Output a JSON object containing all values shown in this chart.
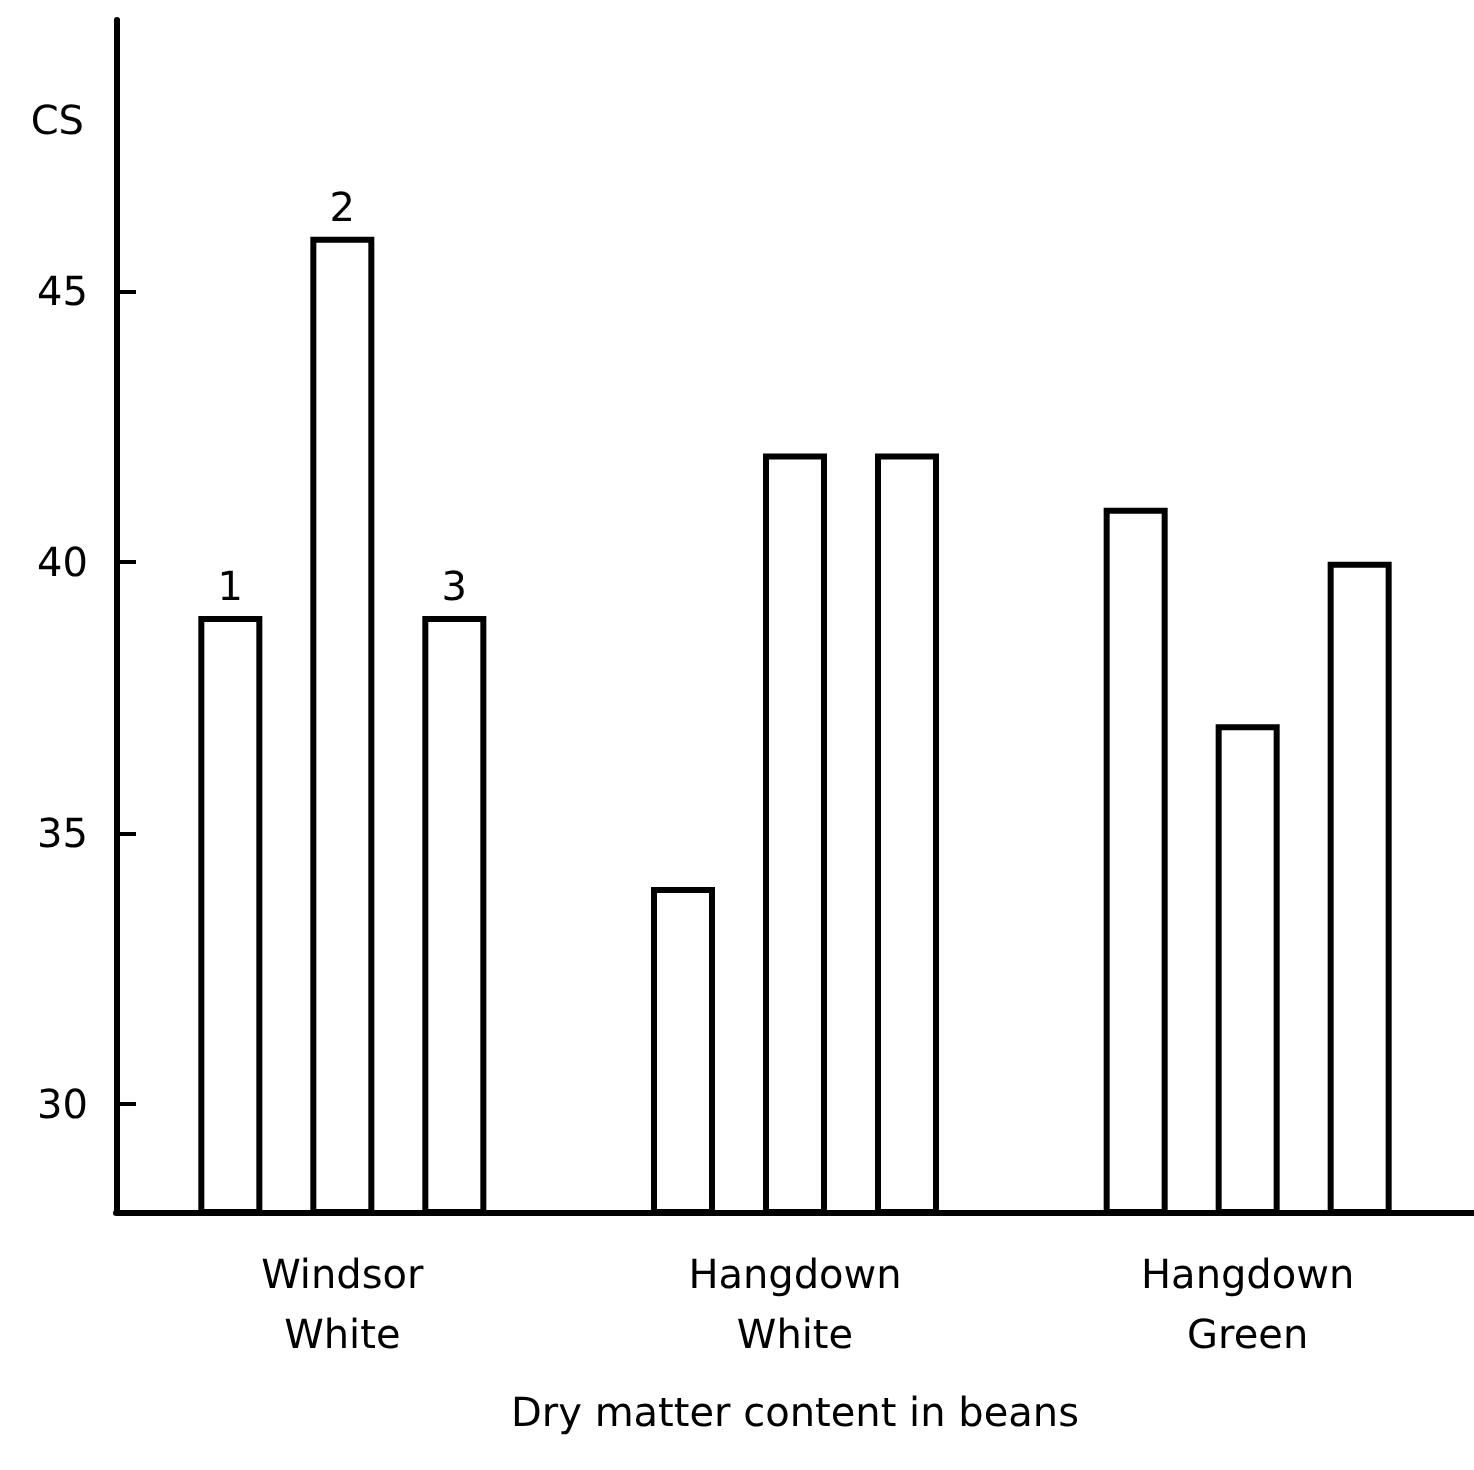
{
  "chart_data": {
    "type": "bar",
    "ylabel": "CS",
    "xlabel": "Dry matter content in beans",
    "categories": [
      "Windsor White",
      "Hangdown White",
      "Hangdown Green"
    ],
    "series": [
      {
        "name": "1",
        "color": "#ffffff",
        "values": [
          39,
          34,
          41
        ]
      },
      {
        "name": "2",
        "color": "#ffffff",
        "values": [
          46,
          42,
          37
        ]
      },
      {
        "name": "3",
        "color": "#ffffff",
        "values": [
          39,
          42,
          40
        ]
      }
    ],
    "ylim": [
      28,
      50
    ],
    "yticks": [
      30,
      35,
      40,
      45
    ],
    "grid": false,
    "legend": false
  }
}
